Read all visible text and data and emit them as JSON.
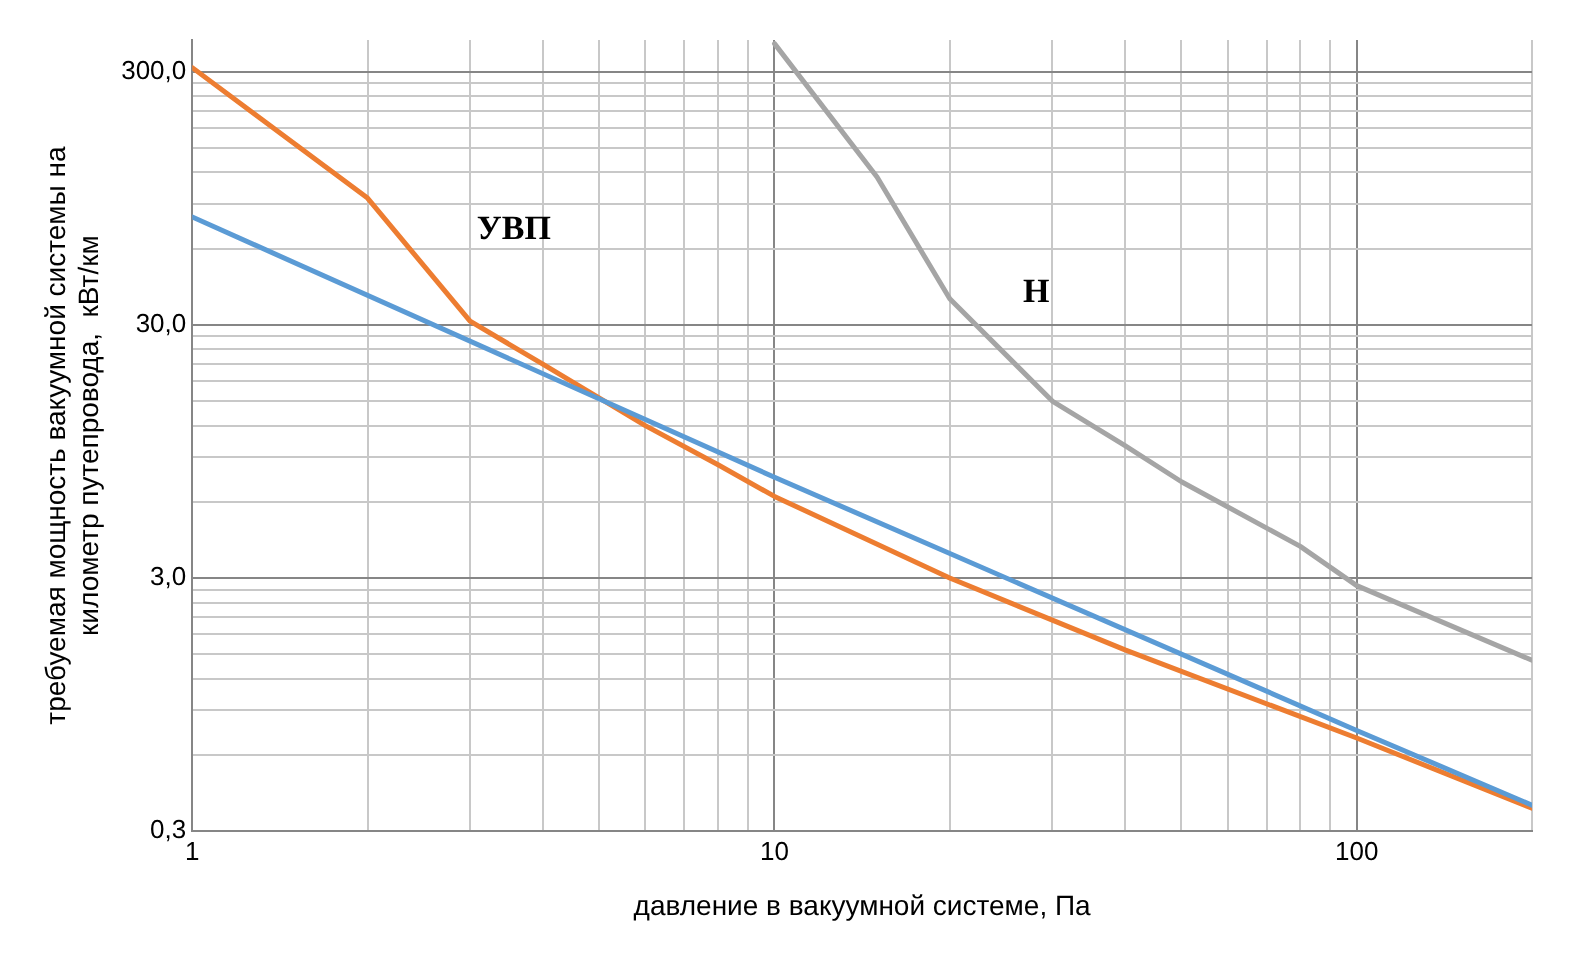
{
  "chart_data": {
    "type": "line",
    "xlabel": "давление в вакуумной системе, Па",
    "ylabel": "требуемая мощность вакуумной системы на\nкилометр путепровода,  кВт/км",
    "log": "xy",
    "grid": true,
    "legend": false,
    "marker": "none",
    "line_style": "solid",
    "xlim": [
      1,
      200
    ],
    "ylim": [
      0.3,
      400
    ],
    "xticks": [
      1,
      {
        "value": 2,
        "label": null
      },
      {
        "value": 3,
        "label": null
      },
      {
        "value": 4,
        "label": null
      },
      {
        "value": 5,
        "label": null
      },
      {
        "value": 6,
        "label": null
      },
      {
        "value": 7,
        "label": null
      },
      {
        "value": 8,
        "label": null
      },
      {
        "value": 9,
        "label": null
      },
      10,
      {
        "value": 20,
        "label": null
      },
      {
        "value": 30,
        "label": null
      },
      {
        "value": 40,
        "label": null
      },
      {
        "value": 50,
        "label": null
      },
      {
        "value": 60,
        "label": null
      },
      {
        "value": 70,
        "label": null
      },
      {
        "value": 80,
        "label": null
      },
      {
        "value": 90,
        "label": null
      },
      100,
      {
        "value": 200,
        "label": null
      }
    ],
    "yticks": [
      {
        "value": 0.3,
        "label": "0,3"
      },
      {
        "value": 0.6,
        "label": null
      },
      {
        "value": 0.9,
        "label": null
      },
      {
        "value": 1.2,
        "label": null
      },
      {
        "value": 1.5,
        "label": null
      },
      {
        "value": 1.8,
        "label": null
      },
      {
        "value": 2.1,
        "label": null
      },
      {
        "value": 2.4,
        "label": null
      },
      {
        "value": 2.7,
        "label": null
      },
      {
        "value": 3,
        "label": "3,0"
      },
      {
        "value": 6,
        "label": null
      },
      {
        "value": 9,
        "label": null
      },
      {
        "value": 12,
        "label": null
      },
      {
        "value": 15,
        "label": null
      },
      {
        "value": 18,
        "label": null
      },
      {
        "value": 21,
        "label": null
      },
      {
        "value": 24,
        "label": null
      },
      {
        "value": 27,
        "label": null
      },
      {
        "value": 30,
        "label": "30,0"
      },
      {
        "value": 60,
        "label": null
      },
      {
        "value": 90,
        "label": null
      },
      {
        "value": 120,
        "label": null
      },
      {
        "value": 150,
        "label": null
      },
      {
        "value": 180,
        "label": null
      },
      {
        "value": 210,
        "label": null
      },
      {
        "value": 240,
        "label": null
      },
      {
        "value": 270,
        "label": null
      },
      {
        "value": 300,
        "label": "300,0"
      }
    ],
    "series": [
      {
        "color": "#5b9bd5",
        "x": [
          1,
          10,
          100,
          200
        ],
        "values": [
          80,
          7.5,
          0.75,
          0.38
        ]
      },
      {
        "color": "#ed7d31",
        "x": [
          1,
          2,
          3,
          4,
          6,
          8,
          10,
          20,
          40,
          100,
          200
        ],
        "values": [
          311,
          95,
          31,
          21,
          12,
          8.4,
          6.3,
          3.0,
          1.56,
          0.7,
          0.37
        ]
      },
      {
        "color": "#a5a5a5",
        "x": [
          10,
          15,
          20,
          30,
          40,
          50,
          80,
          100,
          200
        ],
        "values": [
          387,
          115,
          38,
          15,
          10,
          7.2,
          4.0,
          2.8,
          1.42
        ]
      }
    ],
    "annotations": [
      "УВП",
      "Н"
    ]
  }
}
